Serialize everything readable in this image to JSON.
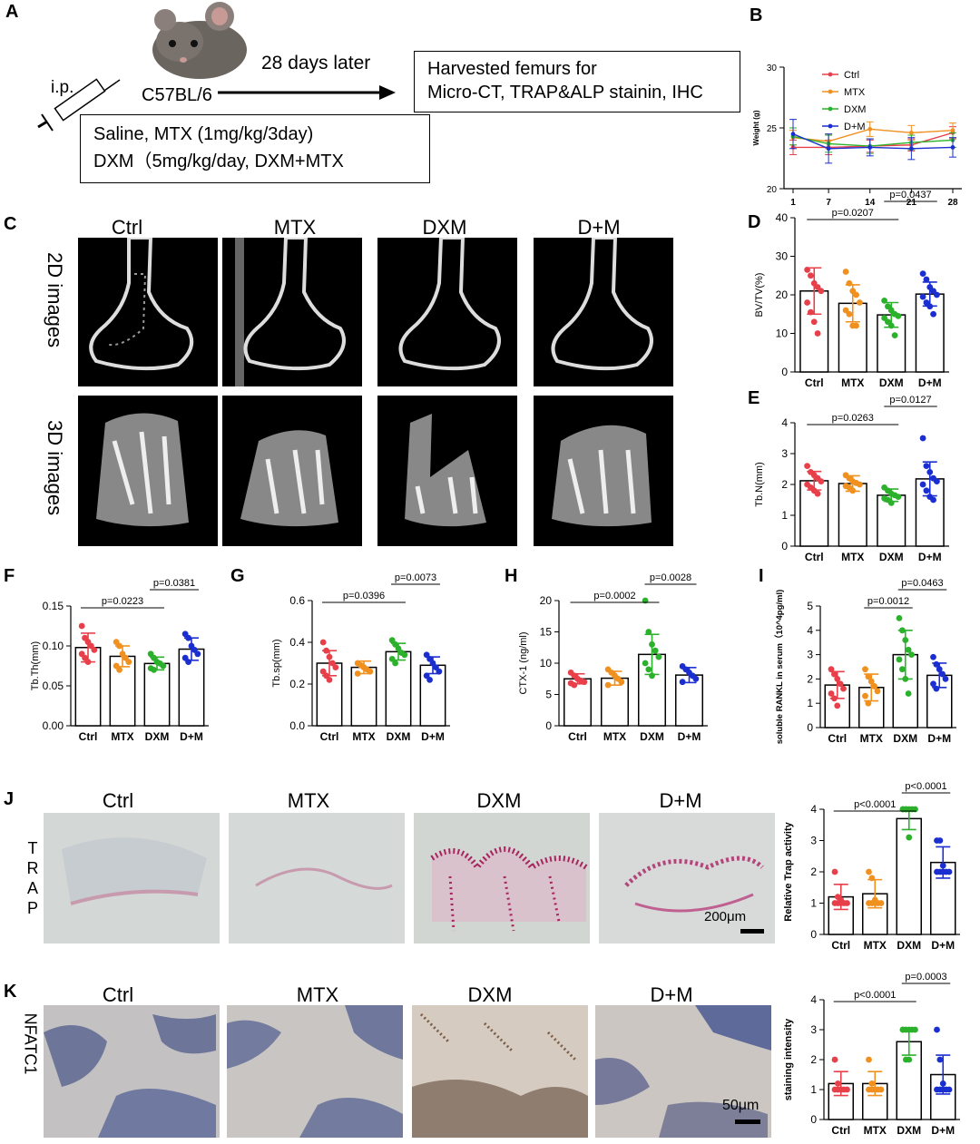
{
  "panels": {
    "A": {
      "label": "A",
      "route": "i.p.",
      "strain": "C57BL/6",
      "timeline": "28 days later",
      "harvest_line1": "Harvested femurs for",
      "harvest_line2": "Micro-CT, TRAP&ALP stainin, IHC",
      "treat_line1": "Saline, MTX (1mg/kg/3day)",
      "treat_line2": "DXM（5mg/kg/day, DXM+MTX"
    },
    "C": {
      "label": "C",
      "columns": [
        "Ctrl",
        "MTX",
        "DXM",
        "D+M"
      ],
      "row1": "2D images",
      "row2": "3D images"
    },
    "J": {
      "label": "J",
      "columns": [
        "Ctrl",
        "MTX",
        "DXM",
        "D+M"
      ],
      "side": [
        "T",
        "R",
        "A",
        "P"
      ],
      "scale": "200μm"
    },
    "K": {
      "label": "K",
      "columns": [
        "Ctrl",
        "MTX",
        "DXM",
        "D+M"
      ],
      "side": "NFATC1",
      "scale": "50μm"
    }
  },
  "colors": {
    "ctrl": "#e8404a",
    "mtx": "#f0901e",
    "dxm": "#2cb12c",
    "dm": "#1b2fd0",
    "trap_tissue": "#d6dad7",
    "trap_stain": "#a8245f",
    "ihc_tissue": "#cfc8c0",
    "ihc_blue": "#5d6a9a"
  },
  "chart_data": [
    {
      "panel": "B",
      "type": "line",
      "x": [
        1,
        7,
        14,
        21,
        28
      ],
      "ylabel": "Weight (g)",
      "ylim": [
        20,
        30
      ],
      "yticks": [
        20,
        25,
        30
      ],
      "legend_position": "top-left",
      "series": [
        {
          "name": "Ctrl",
          "values": [
            23.4,
            23.4,
            23.5,
            23.6,
            24.6
          ],
          "err": [
            0.6,
            0.6,
            0.5,
            0.5,
            0.5
          ]
        },
        {
          "name": "MTX",
          "values": [
            24.2,
            23.9,
            24.9,
            24.6,
            24.8
          ],
          "err": [
            0.6,
            0.6,
            0.6,
            0.6,
            0.6
          ]
        },
        {
          "name": "DXM",
          "values": [
            24.3,
            23.7,
            23.5,
            23.8,
            24.0
          ],
          "err": [
            0.7,
            0.7,
            0.6,
            0.6,
            0.6
          ]
        },
        {
          "name": "D+M",
          "values": [
            24.5,
            23.3,
            23.4,
            23.3,
            23.4
          ],
          "err": [
            1.2,
            1.2,
            0.7,
            0.9,
            0.8
          ]
        }
      ]
    },
    {
      "panel": "D",
      "type": "bar",
      "categories": [
        "Ctrl",
        "MTX",
        "DXM",
        "D+M"
      ],
      "values": [
        21,
        17.8,
        14.8,
        20.2
      ],
      "err": [
        6,
        4.8,
        3.2,
        3.1
      ],
      "points": [
        [
          26.5,
          25,
          23,
          22,
          21,
          18,
          15.5,
          13,
          10
        ],
        [
          26,
          23,
          21,
          20,
          18,
          16,
          15,
          12,
          12
        ],
        [
          18.5,
          17,
          16,
          15,
          14.5,
          14,
          13,
          12,
          9.5
        ],
        [
          25.5,
          24,
          22,
          21,
          20,
          19.5,
          18,
          17,
          15
        ]
      ],
      "ylabel": "BV/TV(%)",
      "ylim": [
        0,
        40
      ],
      "yticks": [
        0,
        10,
        20,
        30,
        40
      ],
      "sig": [
        {
          "from": 0,
          "to": 2,
          "label": "p=0.0207"
        },
        {
          "from": 2,
          "to": 3,
          "label": "p=0.0437"
        }
      ]
    },
    {
      "panel": "E",
      "type": "bar",
      "categories": [
        "Ctrl",
        "MTX",
        "DXM",
        "D+M"
      ],
      "values": [
        2.12,
        2.03,
        1.65,
        2.18
      ],
      "err": [
        0.3,
        0.25,
        0.2,
        0.55
      ],
      "points": [
        [
          2.6,
          2.4,
          2.3,
          2.2,
          2.1,
          2.0,
          1.9,
          1.8,
          1.7
        ],
        [
          2.3,
          2.2,
          2.1,
          2.05,
          2.0,
          1.95,
          1.9,
          1.8
        ],
        [
          1.9,
          1.8,
          1.7,
          1.65,
          1.6,
          1.55,
          1.5,
          1.4
        ],
        [
          3.5,
          2.6,
          2.4,
          2.2,
          2.1,
          2.0,
          1.8,
          1.6,
          1.5
        ]
      ],
      "ylabel": "Tb.N(mm)",
      "ylim": [
        0,
        4
      ],
      "yticks": [
        0,
        1,
        2,
        3,
        4
      ],
      "sig": [
        {
          "from": 0,
          "to": 2,
          "label": "p=0.0263"
        },
        {
          "from": 2,
          "to": 3,
          "label": "p=0.0127"
        }
      ]
    },
    {
      "panel": "F",
      "type": "bar",
      "categories": [
        "Ctrl",
        "MTX",
        "DXM",
        "D+M"
      ],
      "values": [
        0.098,
        0.087,
        0.078,
        0.096
      ],
      "err": [
        0.018,
        0.013,
        0.008,
        0.014
      ],
      "points": [
        [
          0.125,
          0.11,
          0.105,
          0.1,
          0.095,
          0.09,
          0.085,
          0.08
        ],
        [
          0.105,
          0.1,
          0.09,
          0.085,
          0.08,
          0.075,
          0.07
        ],
        [
          0.09,
          0.085,
          0.08,
          0.078,
          0.075,
          0.072,
          0.07
        ],
        [
          0.115,
          0.11,
          0.1,
          0.095,
          0.09,
          0.085,
          0.08
        ]
      ],
      "ylabel": "Tb.Th(mm)",
      "ylim": [
        0,
        0.15
      ],
      "yticks": [
        "0.00",
        "0.05",
        "0.10",
        "0.15"
      ],
      "sig": [
        {
          "from": 0,
          "to": 2,
          "label": "p=0.0223"
        },
        {
          "from": 2,
          "to": 3,
          "label": "p=0.0381"
        }
      ]
    },
    {
      "panel": "G",
      "type": "bar",
      "categories": [
        "Ctrl",
        "MTX",
        "DXM",
        "D+M"
      ],
      "values": [
        0.3,
        0.28,
        0.355,
        0.29
      ],
      "err": [
        0.06,
        0.03,
        0.04,
        0.04
      ],
      "points": [
        [
          0.4,
          0.36,
          0.33,
          0.3,
          0.28,
          0.26,
          0.24,
          0.22
        ],
        [
          0.3,
          0.29,
          0.28,
          0.27,
          0.26,
          0.25
        ],
        [
          0.41,
          0.39,
          0.37,
          0.35,
          0.34,
          0.32,
          0.3
        ],
        [
          0.34,
          0.32,
          0.3,
          0.28,
          0.26,
          0.24,
          0.22
        ]
      ],
      "ylabel": "Tb.sp(mm)",
      "ylim": [
        0,
        0.6
      ],
      "yticks": [
        "0.0",
        "0.2",
        "0.4",
        "0.6"
      ],
      "sig": [
        {
          "from": 0,
          "to": 2,
          "label": "p=0.0396"
        },
        {
          "from": 2,
          "to": 3,
          "label": "p=0.0073"
        }
      ]
    },
    {
      "panel": "H",
      "type": "bar",
      "categories": [
        "Ctrl",
        "MTX",
        "DXM",
        "D+M"
      ],
      "values": [
        7.5,
        7.6,
        11.4,
        8.1
      ],
      "err": [
        0.8,
        1.1,
        3.2,
        1.2
      ],
      "points": [
        [
          8.5,
          8,
          7.5,
          7.2,
          7,
          6.8,
          6.5
        ],
        [
          9,
          8.5,
          8,
          7.5,
          7,
          6.5
        ],
        [
          20,
          15,
          13,
          12,
          11,
          10,
          9,
          8
        ],
        [
          9.5,
          9,
          8.5,
          8,
          7.5,
          7
        ]
      ],
      "ylabel": "CTX-1 (ng/ml)",
      "ylim": [
        0,
        20
      ],
      "yticks": [
        0,
        5,
        10,
        15,
        20
      ],
      "sig": [
        {
          "from": 0,
          "to": 2,
          "label": "p=0.0002"
        },
        {
          "from": 2,
          "to": 3,
          "label": "p=0.0028"
        }
      ]
    },
    {
      "panel": "I",
      "type": "bar",
      "categories": [
        "Ctrl",
        "MTX",
        "DXM",
        "D+M"
      ],
      "values": [
        1.75,
        1.65,
        3.0,
        2.15
      ],
      "err": [
        0.55,
        0.55,
        1.0,
        0.5
      ],
      "points": [
        [
          2.4,
          2.2,
          2.0,
          1.8,
          1.6,
          1.4,
          1.2,
          0.9
        ],
        [
          2.4,
          2.1,
          1.9,
          1.7,
          1.5,
          1.3,
          1.0
        ],
        [
          4.5,
          4.0,
          3.6,
          3.2,
          3.0,
          2.8,
          2.4,
          2.0,
          1.4
        ],
        [
          2.9,
          2.6,
          2.4,
          2.2,
          2.0,
          1.8,
          1.6
        ]
      ],
      "ylabel": "soluble RANKL in serum（10^4pg/ml)",
      "ylim": [
        0,
        5
      ],
      "yticks": [
        0,
        1,
        2,
        3,
        4,
        5
      ],
      "sig": [
        {
          "from": 1,
          "to": 2,
          "label": "p=0.0012"
        },
        {
          "from": 2,
          "to": 3,
          "label": "p=0.0463"
        }
      ]
    },
    {
      "panel": "J",
      "type": "bar",
      "categories": [
        "Ctrl",
        "MTX",
        "DXM",
        "D+M"
      ],
      "values": [
        1.2,
        1.3,
        3.7,
        2.3
      ],
      "err": [
        0.4,
        0.45,
        0.35,
        0.5
      ],
      "points": [
        [
          2,
          1.2,
          1.1,
          1,
          1,
          1,
          1,
          1
        ],
        [
          2,
          1.8,
          1.1,
          1,
          1,
          1,
          1,
          1
        ],
        [
          4,
          4,
          4,
          4,
          4,
          4,
          4,
          3.1
        ],
        [
          3,
          3,
          2.2,
          2,
          2,
          2,
          2,
          2
        ]
      ],
      "ylabel": "Relative Trap activity",
      "ylim": [
        0,
        4
      ],
      "yticks": [
        0,
        1,
        2,
        3,
        4
      ],
      "sig": [
        {
          "from": 0,
          "to": 2,
          "label": "p<0.0001"
        },
        {
          "from": 2,
          "to": 3,
          "label": "p<0.0001"
        }
      ]
    },
    {
      "panel": "K",
      "type": "bar",
      "categories": [
        "Ctrl",
        "MTX",
        "DXM",
        "D+M"
      ],
      "values": [
        1.2,
        1.2,
        2.6,
        1.5
      ],
      "err": [
        0.4,
        0.4,
        0.45,
        0.65
      ],
      "points": [
        [
          2,
          1.2,
          1,
          1,
          1,
          1,
          1,
          1
        ],
        [
          2,
          1.2,
          1,
          1,
          1,
          1,
          1,
          1
        ],
        [
          3,
          3,
          3,
          3,
          3,
          3,
          2,
          2
        ],
        [
          3,
          2,
          1.2,
          1,
          1,
          1,
          1,
          1
        ]
      ],
      "ylabel": "staining intensity",
      "ylim": [
        0,
        4
      ],
      "yticks": [
        0,
        1,
        2,
        3,
        4
      ],
      "sig": [
        {
          "from": 0,
          "to": 2,
          "label": "p<0.0001"
        },
        {
          "from": 2,
          "to": 3,
          "label": "p=0.0003"
        }
      ]
    }
  ]
}
